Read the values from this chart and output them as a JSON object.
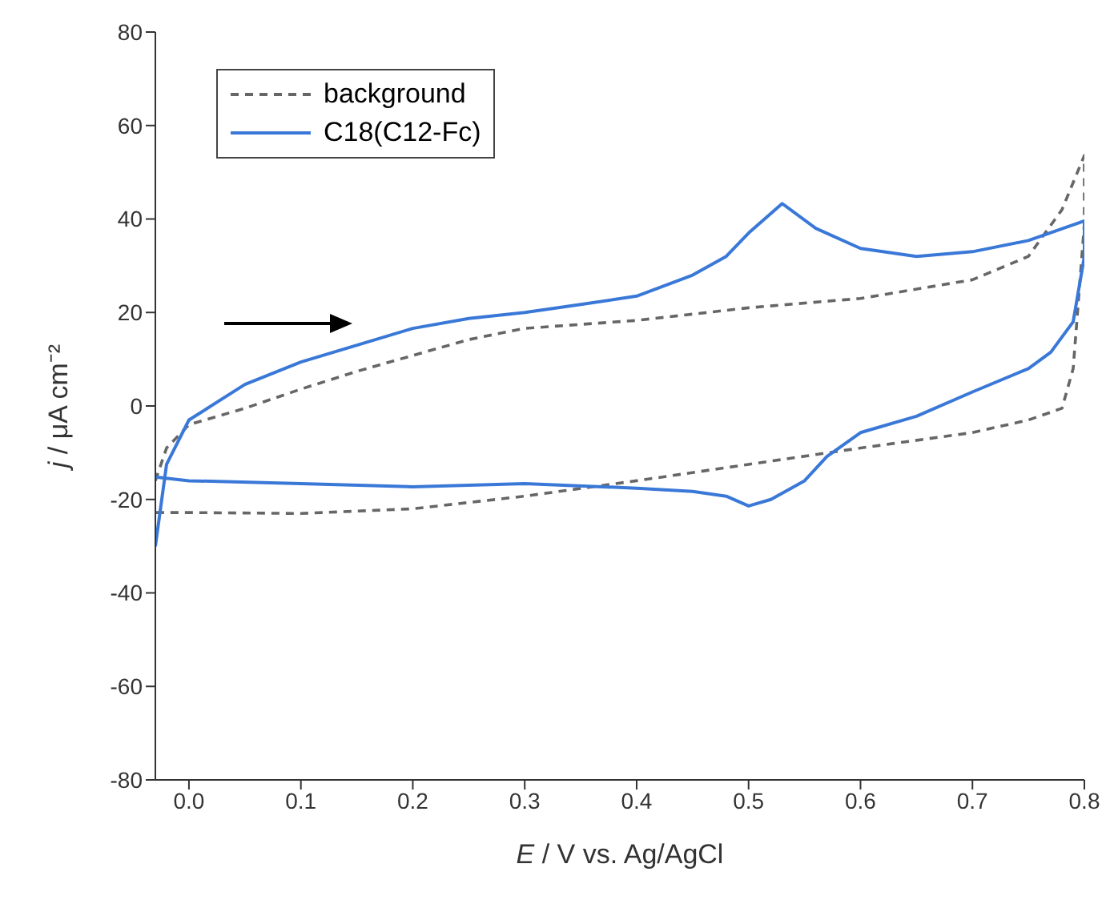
{
  "chart_data": {
    "type": "line",
    "xlabel": "E / V vs. Ag/AgCl",
    "ylabel": "j / μA cm⁻²",
    "xlim": [
      -0.03,
      0.8
    ],
    "xticks": [
      {
        "value": 0,
        "label": "0.0"
      },
      0.1,
      0.2,
      0.3,
      0.4,
      0.5,
      0.6,
      0.7,
      0.8
    ],
    "ylim": [
      -80,
      80
    ],
    "yticks": [
      -80,
      -60,
      -40,
      -20,
      0,
      20,
      40,
      60,
      80
    ],
    "legend": "top left",
    "marker": "none",
    "series": [
      {
        "name": "background",
        "color": "#666666",
        "line_style": "dashed",
        "x": [
          -0.03,
          -0.02,
          0.0,
          0.05,
          0.1,
          0.15,
          0.2,
          0.25,
          0.3,
          0.4,
          0.5,
          0.6,
          0.7,
          0.75,
          0.78,
          0.8,
          0.8,
          0.79,
          0.78,
          0.75,
          0.7,
          0.6,
          0.5,
          0.4,
          0.3,
          0.2,
          0.1,
          0.0,
          -0.03
        ],
        "values": [
          -16,
          -9,
          -4,
          -0.5,
          3.6,
          7.4,
          10.8,
          14.2,
          16.6,
          18.3,
          21,
          23,
          27,
          32,
          42,
          53.6,
          39,
          8,
          -0.5,
          -3,
          -5.7,
          -9,
          -12.5,
          -16,
          -19.3,
          -22,
          -23,
          -22.8,
          -22.8
        ]
      },
      {
        "name": "C18(C12-Fc)",
        "color": "#3a78d8",
        "line_style": "solid",
        "x": [
          -0.03,
          -0.02,
          0.0,
          0.05,
          0.1,
          0.15,
          0.2,
          0.25,
          0.3,
          0.35,
          0.4,
          0.45,
          0.48,
          0.5,
          0.53,
          0.56,
          0.6,
          0.65,
          0.7,
          0.75,
          0.8,
          0.8,
          0.79,
          0.77,
          0.75,
          0.7,
          0.65,
          0.6,
          0.57,
          0.55,
          0.52,
          0.5,
          0.48,
          0.45,
          0.4,
          0.3,
          0.2,
          0.1,
          0.0,
          -0.03
        ],
        "values": [
          -30,
          -12.5,
          -3,
          4.6,
          9.4,
          13,
          16.6,
          18.7,
          20,
          21.7,
          23.5,
          28,
          32,
          37,
          43.3,
          38,
          33.7,
          32,
          33,
          35.4,
          39.6,
          32,
          18,
          11.5,
          8,
          3,
          -2.2,
          -5.7,
          -10.8,
          -16,
          -20,
          -21.4,
          -19.3,
          -18.3,
          -17.6,
          -16.6,
          -17.3,
          -16.6,
          -16,
          -15.2
        ]
      }
    ]
  }
}
